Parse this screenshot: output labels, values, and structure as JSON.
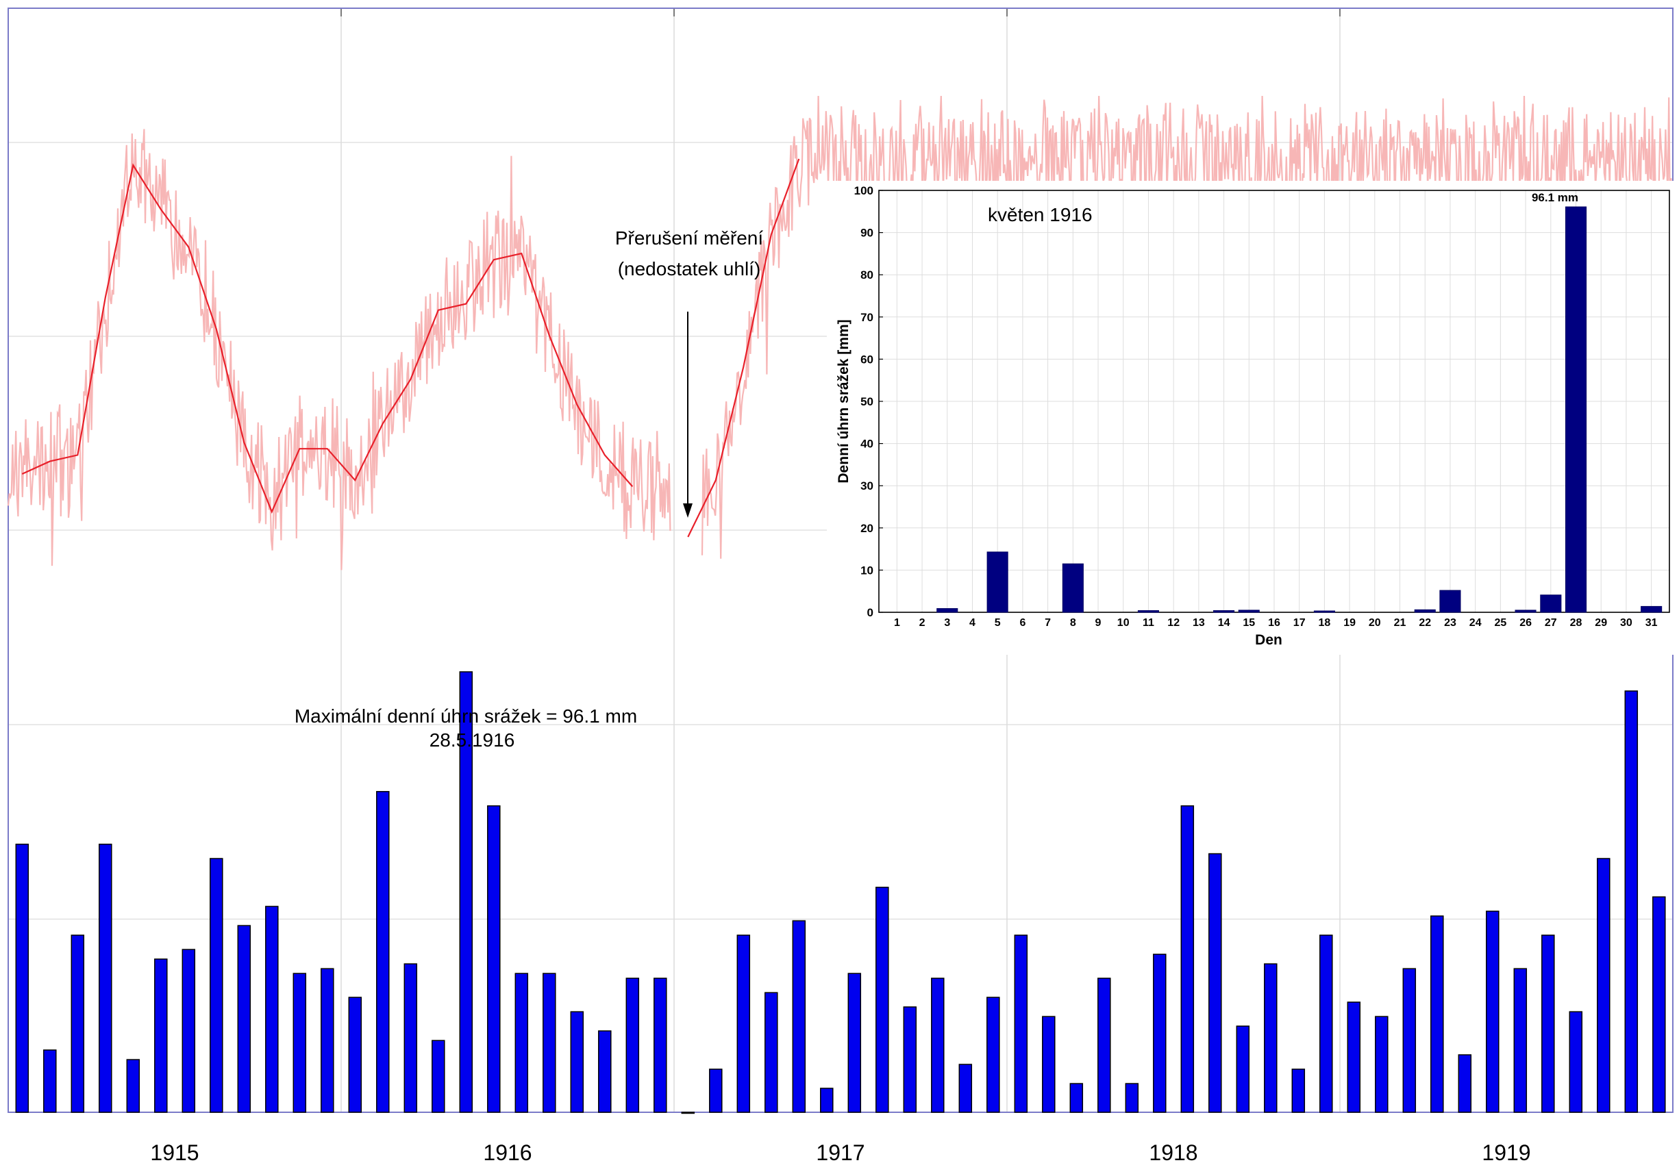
{
  "colors": {
    "temperature_daily": "#f7b6b6",
    "temperature_monthly": "#e8202a",
    "precip_bars": "#0000ee",
    "inset_bars": "#000080",
    "grid": "#dcdcdc",
    "frame": "#7a7ac8"
  },
  "chart_data": [
    {
      "type": "bar",
      "title": "",
      "xlabel": "",
      "ylabel": "",
      "grid": true,
      "x_tick_labels": [
        "1915",
        "1916",
        "1917",
        "1918",
        "1919"
      ],
      "precip_series": {
        "name": "",
        "unit": "relative",
        "ylim": [
          0,
          100
        ],
        "values": [
          56,
          13,
          37,
          56,
          11,
          32,
          34,
          53,
          39,
          43,
          29,
          30,
          24,
          67,
          31,
          15,
          92,
          64,
          29,
          29,
          21,
          17,
          28,
          28,
          0,
          9,
          37,
          25,
          40,
          5,
          29,
          47,
          22,
          28,
          10,
          24,
          37,
          20,
          6,
          28,
          6,
          33,
          64,
          54,
          18,
          31,
          9,
          37,
          23,
          20,
          30,
          41,
          12,
          42,
          30,
          37,
          21,
          53,
          88,
          45
        ]
      },
      "temperature_monthly_series": {
        "name": "",
        "ylim": [
          0,
          100
        ],
        "values": [
          40,
          42,
          43,
          68,
          89,
          82,
          76,
          63,
          45,
          34,
          44,
          44,
          39,
          48,
          55,
          66,
          67,
          74,
          75,
          62,
          51,
          43,
          38,
          null,
          30,
          39,
          57,
          78,
          90
        ]
      },
      "annotations": [
        {
          "lines": [
            "Přerušení měření",
            "(nedostatek uhlí)"
          ],
          "type": "arrow"
        },
        {
          "lines": [
            "Maximální denní úhrn srážek = 96.1 mm",
            "28.5.1916"
          ],
          "type": "label"
        }
      ]
    },
    {
      "type": "bar",
      "title": "květen 1916",
      "xlabel": "Den",
      "ylabel": "Denní úhrn srážek [mm]",
      "ylim": [
        0,
        100
      ],
      "y_ticks": [
        0,
        10,
        20,
        30,
        40,
        50,
        60,
        70,
        80,
        90,
        100
      ],
      "grid": true,
      "categories": [
        "1",
        "2",
        "3",
        "4",
        "5",
        "6",
        "7",
        "8",
        "9",
        "10",
        "11",
        "12",
        "13",
        "14",
        "15",
        "16",
        "17",
        "18",
        "19",
        "20",
        "21",
        "22",
        "23",
        "24",
        "25",
        "26",
        "27",
        "28",
        "29",
        "30",
        "31"
      ],
      "values": [
        0,
        0,
        0.9,
        0,
        14.3,
        0,
        0,
        11.5,
        0,
        0,
        0.4,
        0,
        0,
        0.4,
        0.5,
        0,
        0,
        0.3,
        0,
        0,
        0,
        0.6,
        5.2,
        0,
        0,
        0.5,
        4.1,
        96.1,
        0,
        0,
        1.4
      ],
      "max_label": "96.1 mm"
    }
  ]
}
